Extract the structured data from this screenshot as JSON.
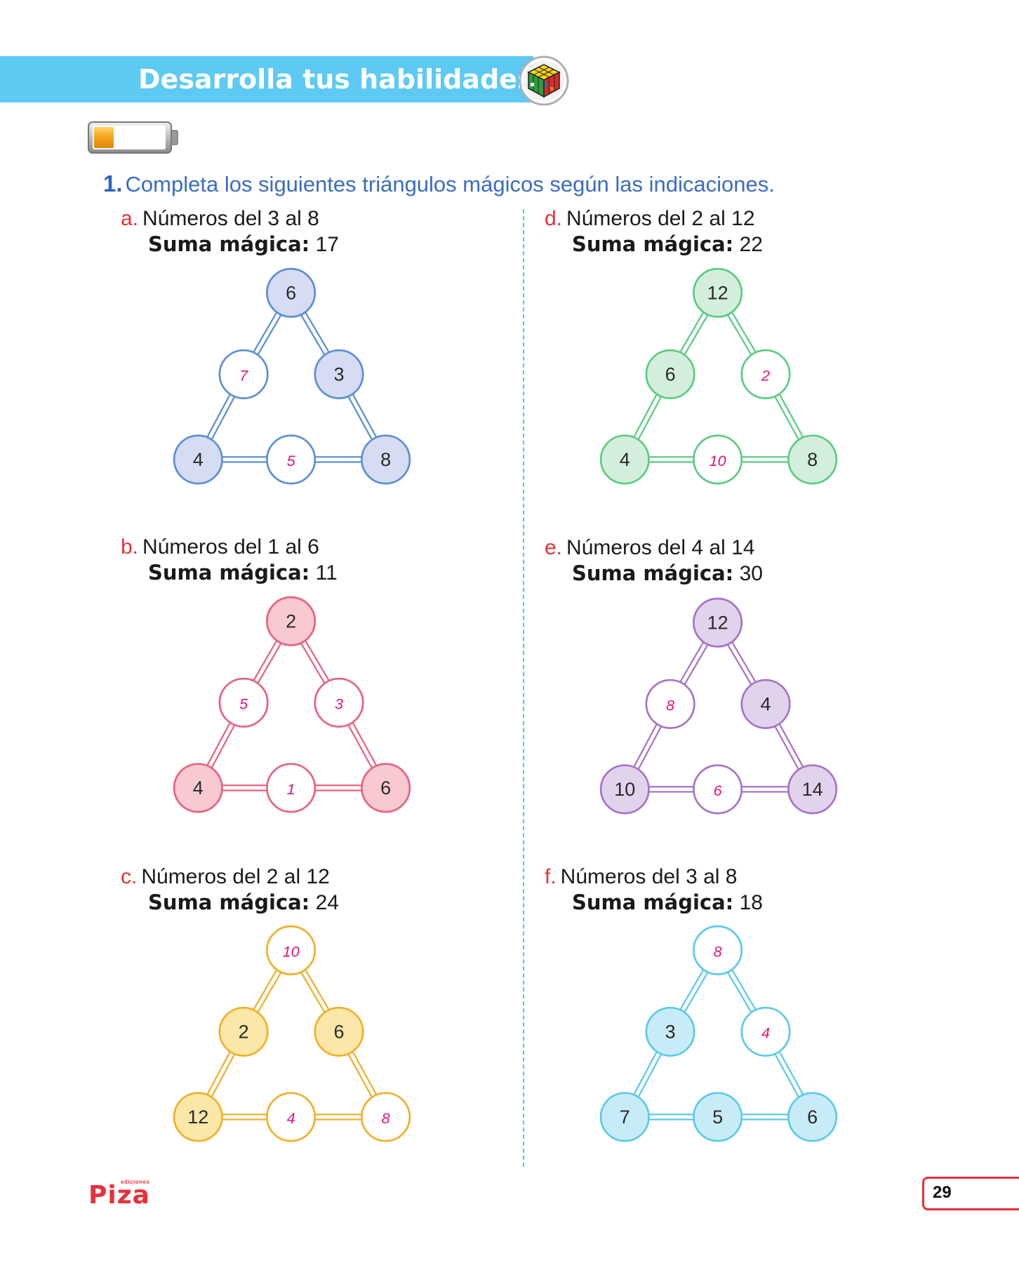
{
  "header": {
    "title": "Desarrolla tus habilidades"
  },
  "instruction": {
    "number": "1.",
    "text": "Completa los siguientes triángulos mágicos según las indicaciones."
  },
  "exercises": [
    {
      "letter": "a.",
      "range": "Números del 3 al 8",
      "sum_label": "Suma mágica:",
      "sum_value": "17",
      "color": "#5b8fd6",
      "fill": "#d6dcf2",
      "nodes": {
        "top": "6",
        "left_mid": "7",
        "right_mid": "3",
        "bottom_left": "4",
        "bottom_mid": "5",
        "bottom_right": "8"
      },
      "answered": [
        "left_mid",
        "bottom_mid"
      ]
    },
    {
      "letter": "b.",
      "range": "Números del 1 al 6",
      "sum_label": "Suma mágica:",
      "sum_value": "11",
      "color": "#e8627f",
      "fill": "#f9c9d1",
      "nodes": {
        "top": "2",
        "left_mid": "5",
        "right_mid": "3",
        "bottom_left": "4",
        "bottom_mid": "1",
        "bottom_right": "6"
      },
      "answered": [
        "left_mid",
        "right_mid",
        "bottom_mid"
      ]
    },
    {
      "letter": "c.",
      "range": "Números del 2 al 12",
      "sum_label": "Suma mágica:",
      "sum_value": "24",
      "color": "#f0b02a",
      "fill": "#fbe8a8",
      "nodes": {
        "top": "10",
        "left_mid": "2",
        "right_mid": "6",
        "bottom_left": "12",
        "bottom_mid": "4",
        "bottom_right": "8"
      },
      "answered": [
        "top",
        "bottom_mid",
        "bottom_right"
      ]
    },
    {
      "letter": "d.",
      "range": "Números del 2 al 12",
      "sum_label": "Suma mágica:",
      "sum_value": "22",
      "color": "#5bcc83",
      "fill": "#d3efdb",
      "nodes": {
        "top": "12",
        "left_mid": "6",
        "right_mid": "2",
        "bottom_left": "4",
        "bottom_mid": "10",
        "bottom_right": "8"
      },
      "answered": [
        "right_mid",
        "bottom_mid"
      ]
    },
    {
      "letter": "e.",
      "range": "Números del 4 al 14",
      "sum_label": "Suma mágica:",
      "sum_value": "30",
      "color": "#a574c7",
      "fill": "#e2d3ec",
      "nodes": {
        "top": "12",
        "left_mid": "8",
        "right_mid": "4",
        "bottom_left": "10",
        "bottom_mid": "6",
        "bottom_right": "14"
      },
      "answered": [
        "left_mid",
        "bottom_mid"
      ]
    },
    {
      "letter": "f.",
      "range": "Números del 3 al 8",
      "sum_label": "Suma mágica:",
      "sum_value": "18",
      "color": "#5ccaec",
      "fill": "#c8ecf7",
      "nodes": {
        "top": "8",
        "left_mid": "3",
        "right_mid": "4",
        "bottom_left": "7",
        "bottom_mid": "5",
        "bottom_right": "6"
      },
      "answered": [
        "top",
        "right_mid"
      ]
    }
  ],
  "answer_color": "#e0117f",
  "footer": {
    "brand_small": "ediciones",
    "brand": "Piza",
    "page_number": "29"
  }
}
